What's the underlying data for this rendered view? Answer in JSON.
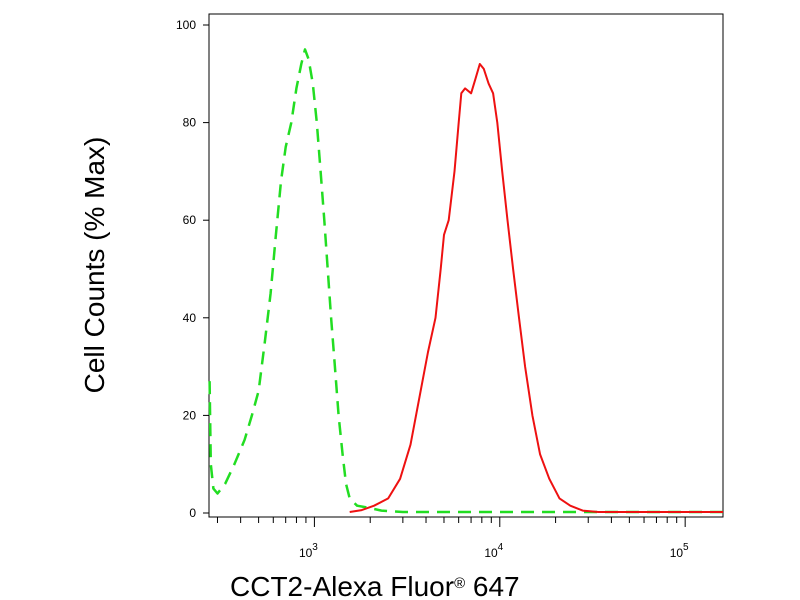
{
  "chart_data": {
    "type": "line",
    "title": "",
    "xlabel": "CCT2-Alexa Fluor",
    "xlabel_mark": "®",
    "xlabel_suffix": " 647",
    "ylabel": "Cell Counts (% Max)",
    "xscale": "log",
    "xlim": [
      270,
      160000
    ],
    "ylim": [
      0,
      100
    ],
    "grid": false,
    "legend": "none",
    "y_ticks": [
      {
        "value": 0,
        "label": "0"
      },
      {
        "value": 20,
        "label": "20"
      },
      {
        "value": 40,
        "label": "40"
      },
      {
        "value": 60,
        "label": "60"
      },
      {
        "value": 80,
        "label": "80"
      },
      {
        "value": 100,
        "label": "100"
      }
    ],
    "x_major_ticks": [
      {
        "value": 1000,
        "base": "10",
        "exp": "3"
      },
      {
        "value": 10000,
        "base": "10",
        "exp": "4"
      },
      {
        "value": 100000,
        "base": "10",
        "exp": "5"
      }
    ],
    "series": [
      {
        "color": "#22dd22",
        "style": "dashed",
        "points": [
          [
            272,
            27
          ],
          [
            276,
            10
          ],
          [
            285,
            5
          ],
          [
            300,
            4
          ],
          [
            330,
            6
          ],
          [
            370,
            10
          ],
          [
            420,
            15
          ],
          [
            460,
            20
          ],
          [
            500,
            25
          ],
          [
            540,
            35
          ],
          [
            580,
            45
          ],
          [
            620,
            57
          ],
          [
            660,
            68
          ],
          [
            700,
            75
          ],
          [
            750,
            80
          ],
          [
            800,
            87
          ],
          [
            850,
            92
          ],
          [
            890,
            95
          ],
          [
            930,
            93
          ],
          [
            980,
            88
          ],
          [
            1030,
            80
          ],
          [
            1080,
            70
          ],
          [
            1130,
            60
          ],
          [
            1180,
            50
          ],
          [
            1230,
            40
          ],
          [
            1290,
            30
          ],
          [
            1350,
            20
          ],
          [
            1420,
            12
          ],
          [
            1480,
            6
          ],
          [
            1550,
            3
          ],
          [
            1700,
            1.5
          ],
          [
            2000,
            1
          ],
          [
            2300,
            0.5
          ],
          [
            3000,
            0.2
          ],
          [
            20000,
            0.2
          ],
          [
            160000,
            0.2
          ]
        ]
      },
      {
        "color": "#ee1111",
        "style": "solid",
        "points": [
          [
            1550,
            0.2
          ],
          [
            1800,
            0.6
          ],
          [
            2100,
            1.5
          ],
          [
            2500,
            3
          ],
          [
            2900,
            7
          ],
          [
            3300,
            14
          ],
          [
            3700,
            24
          ],
          [
            4100,
            33
          ],
          [
            4500,
            40
          ],
          [
            4800,
            50
          ],
          [
            5000,
            57
          ],
          [
            5300,
            60
          ],
          [
            5700,
            70
          ],
          [
            6000,
            80
          ],
          [
            6200,
            86
          ],
          [
            6500,
            87
          ],
          [
            7000,
            86
          ],
          [
            7400,
            89
          ],
          [
            7800,
            92
          ],
          [
            8200,
            91
          ],
          [
            8700,
            88
          ],
          [
            9200,
            86
          ],
          [
            9700,
            80
          ],
          [
            10300,
            70
          ],
          [
            11000,
            60
          ],
          [
            11800,
            50
          ],
          [
            12700,
            40
          ],
          [
            13700,
            30
          ],
          [
            15000,
            20
          ],
          [
            16500,
            12
          ],
          [
            18500,
            7
          ],
          [
            21000,
            3
          ],
          [
            24000,
            1.5
          ],
          [
            28000,
            0.5
          ],
          [
            34000,
            0.2
          ],
          [
            160000,
            0.2
          ]
        ]
      }
    ]
  }
}
